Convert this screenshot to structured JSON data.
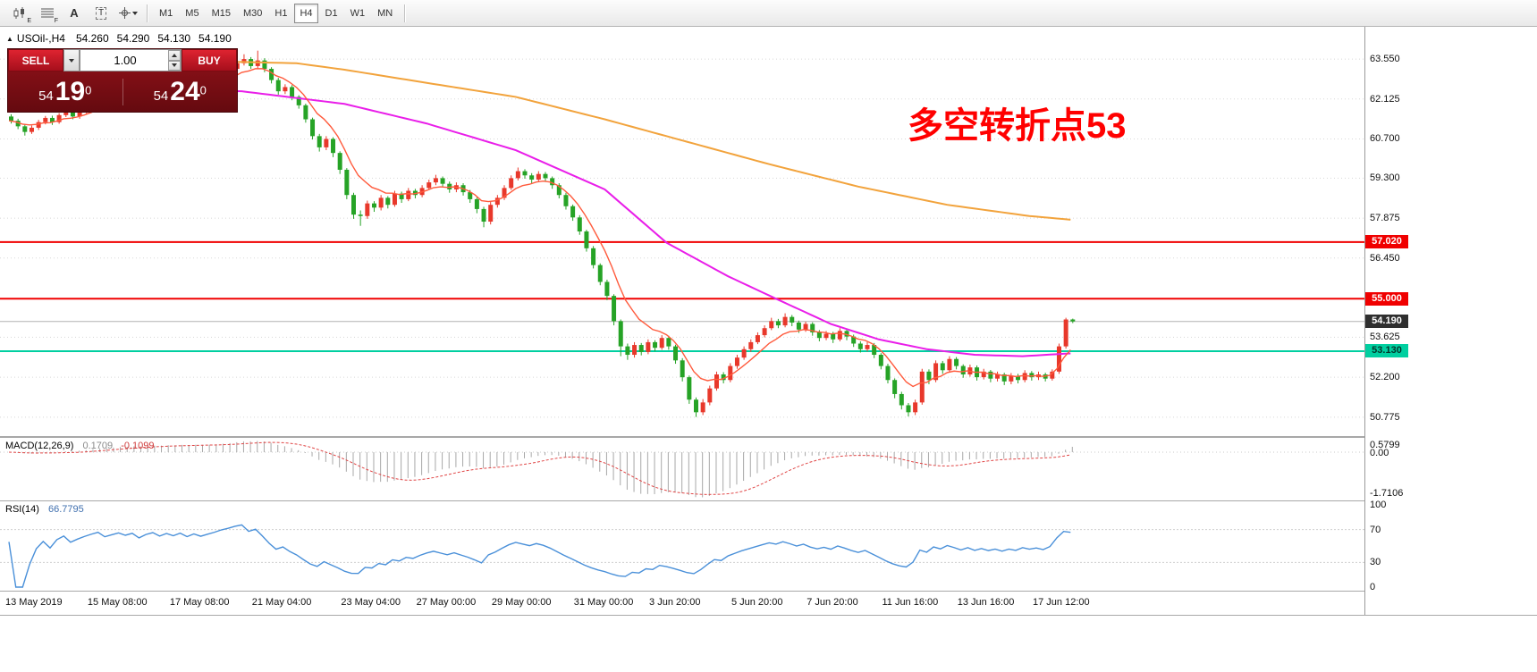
{
  "toolbar": {
    "icons": [
      {
        "name": "candlestick-chart-icon",
        "badge": "E"
      },
      {
        "name": "hatch-pattern-icon",
        "badge": "F"
      },
      {
        "name": "font-icon",
        "label": "A"
      },
      {
        "name": "text-tool-icon",
        "label": "T"
      },
      {
        "name": "crosshair-dropdown-icon",
        "badge": ""
      }
    ],
    "timeframes": [
      "M1",
      "M5",
      "M15",
      "M30",
      "H1",
      "H4",
      "D1",
      "W1",
      "MN"
    ],
    "active_timeframe": "H4"
  },
  "trade_panel": {
    "sell_label": "SELL",
    "buy_label": "BUY",
    "volume": "1.00",
    "sell_price": {
      "whole": "54",
      "pips": "19",
      "frac": "0"
    },
    "buy_price": {
      "whole": "54",
      "pips": "24",
      "frac": "0"
    }
  },
  "annotation": {
    "text": "多空转折点53",
    "color": "#ff0000"
  },
  "chart_data": {
    "type": "candlestick",
    "symbol": "USOil-,H4",
    "timeframe": "H4",
    "ohlc": {
      "open": "54.260",
      "high": "54.290",
      "low": "54.130",
      "close": "54.190"
    },
    "price_range": {
      "min": 50.1,
      "max": 64.7
    },
    "price_ticks": [
      "63.550",
      "62.125",
      "60.700",
      "59.300",
      "57.875",
      "56.450",
      "53.625",
      "52.200",
      "50.775"
    ],
    "badges": [
      {
        "label": "57.020",
        "price": 57.02,
        "bg": "#f00000",
        "fg": "#ffffff"
      },
      {
        "label": "55.000",
        "price": 55.0,
        "bg": "#f00000",
        "fg": "#ffffff"
      },
      {
        "label": "54.190",
        "price": 54.19,
        "bg": "#2f2f2f",
        "fg": "#ffffff"
      },
      {
        "label": "53.130",
        "price": 53.13,
        "bg": "#00cfa0",
        "fg": "#00352a"
      }
    ],
    "hlines": [
      {
        "price": 57.02,
        "color": "#f00000",
        "width": 2
      },
      {
        "price": 55.0,
        "color": "#f00000",
        "width": 2
      },
      {
        "price": 53.13,
        "color": "#00cfa0",
        "width": 2
      },
      {
        "price": 54.19,
        "color": "#b4b4b4",
        "width": 1
      }
    ],
    "time_labels": [
      {
        "text": "13 May 2019",
        "index": 0
      },
      {
        "text": "15 May 08:00",
        "index": 12
      },
      {
        "text": "17 May 08:00",
        "index": 24
      },
      {
        "text": "21 May 04:00",
        "index": 36
      },
      {
        "text": "23 May 04:00",
        "index": 49
      },
      {
        "text": "27 May 00:00",
        "index": 60
      },
      {
        "text": "29 May 00:00",
        "index": 71
      },
      {
        "text": "31 May 00:00",
        "index": 83
      },
      {
        "text": "3 Jun 20:00",
        "index": 94
      },
      {
        "text": "5 Jun 20:00",
        "index": 106
      },
      {
        "text": "7 Jun 20:00",
        "index": 117
      },
      {
        "text": "11 Jun 16:00",
        "index": 128
      },
      {
        "text": "13 Jun 16:00",
        "index": 139
      },
      {
        "text": "17 Jun 12:00",
        "index": 150
      }
    ],
    "overlays": {
      "ma_slow": [
        [
          0,
          63.1
        ],
        [
          20,
          63.3
        ],
        [
          33,
          63.45
        ],
        [
          42,
          63.4
        ],
        [
          49,
          63.17
        ],
        [
          61,
          62.7
        ],
        [
          74,
          62.2
        ],
        [
          87,
          61.4
        ],
        [
          99,
          60.6
        ],
        [
          111,
          59.8
        ],
        [
          124,
          59.0
        ],
        [
          137,
          58.35
        ],
        [
          149,
          57.95
        ],
        [
          155,
          57.82
        ]
      ],
      "ma_mid": [
        [
          0,
          62.4
        ],
        [
          20,
          62.45
        ],
        [
          34,
          62.4
        ],
        [
          49,
          61.95
        ],
        [
          61,
          61.25
        ],
        [
          74,
          60.3
        ],
        [
          87,
          58.9
        ],
        [
          96,
          57.0
        ],
        [
          105,
          55.8
        ],
        [
          112,
          55.0
        ],
        [
          120,
          54.1
        ],
        [
          127,
          53.55
        ],
        [
          134,
          53.2
        ],
        [
          141,
          53.0
        ],
        [
          148,
          52.95
        ],
        [
          155,
          53.05
        ]
      ],
      "ma_fast_period": 8
    },
    "indicators": {
      "macd": {
        "label": "MACD(12,26,9)",
        "params": [
          12,
          26,
          9
        ],
        "display_main": "0.1709",
        "display_signal": "-0.1099",
        "axis": {
          "max": "0.5799",
          "zero": "0.00",
          "min": "-1.7106"
        }
      },
      "rsi": {
        "label": "RSI(14)",
        "period": 14,
        "display": "66.7795",
        "axis": [
          "100",
          "70",
          "30",
          "0"
        ],
        "levels": [
          70,
          30
        ]
      }
    },
    "colors": {
      "up": "#e8382b",
      "down": "#26a326",
      "ma_slow": "#f2a33c",
      "ma_mid": "#e91ee9",
      "ma_fast": "#ff5a3c",
      "macd_hist": "#a8a8a8",
      "macd_signal": "#e04545",
      "rsi": "#4a90d9",
      "grid": "#d8d8d8"
    },
    "candles": [
      [
        61.5,
        61.58,
        61.25,
        61.35
      ],
      [
        61.35,
        61.42,
        61.05,
        61.15
      ],
      [
        61.15,
        61.22,
        60.82,
        60.95
      ],
      [
        60.95,
        61.18,
        60.88,
        61.1
      ],
      [
        61.1,
        61.38,
        61.02,
        61.3
      ],
      [
        61.3,
        61.52,
        61.22,
        61.45
      ],
      [
        61.45,
        61.53,
        61.2,
        61.3
      ],
      [
        61.3,
        61.62,
        61.24,
        61.55
      ],
      [
        61.55,
        61.78,
        61.48,
        61.7
      ],
      [
        61.7,
        61.76,
        61.4,
        61.5
      ],
      [
        61.5,
        61.73,
        61.42,
        61.65
      ],
      [
        61.65,
        61.88,
        61.57,
        61.8
      ],
      [
        61.8,
        62.03,
        61.72,
        61.95
      ],
      [
        61.95,
        62.18,
        61.88,
        62.1
      ],
      [
        62.1,
        62.16,
        61.8,
        61.9
      ],
      [
        61.9,
        62.13,
        61.82,
        62.05
      ],
      [
        62.05,
        62.28,
        61.97,
        62.2
      ],
      [
        62.2,
        62.27,
        62.0,
        62.1
      ],
      [
        62.1,
        62.33,
        62.02,
        62.25
      ],
      [
        62.25,
        62.31,
        61.95,
        62.05
      ],
      [
        62.05,
        62.38,
        61.98,
        62.3
      ],
      [
        62.3,
        62.53,
        62.22,
        62.45
      ],
      [
        62.45,
        62.51,
        62.2,
        62.3
      ],
      [
        62.3,
        62.58,
        62.22,
        62.5
      ],
      [
        62.5,
        62.56,
        62.3,
        62.4
      ],
      [
        62.4,
        62.68,
        62.32,
        62.6
      ],
      [
        62.6,
        62.66,
        62.35,
        62.45
      ],
      [
        62.45,
        62.73,
        62.37,
        62.65
      ],
      [
        62.65,
        62.71,
        62.45,
        62.55
      ],
      [
        62.55,
        62.78,
        62.47,
        62.7
      ],
      [
        62.7,
        62.93,
        62.62,
        62.85
      ],
      [
        62.85,
        63.13,
        62.77,
        63.05
      ],
      [
        63.05,
        63.28,
        62.97,
        63.2
      ],
      [
        63.2,
        63.48,
        63.12,
        63.4
      ],
      [
        63.4,
        63.72,
        63.32,
        63.55
      ],
      [
        63.55,
        63.62,
        63.2,
        63.3
      ],
      [
        63.3,
        63.85,
        63.22,
        63.5
      ],
      [
        63.5,
        63.58,
        63.08,
        63.2
      ],
      [
        63.2,
        63.26,
        62.68,
        62.8
      ],
      [
        62.8,
        62.88,
        62.28,
        62.4
      ],
      [
        62.4,
        62.65,
        62.3,
        62.55
      ],
      [
        62.55,
        62.62,
        62.08,
        62.2
      ],
      [
        62.2,
        62.26,
        61.78,
        61.9
      ],
      [
        61.9,
        61.96,
        61.28,
        61.4
      ],
      [
        61.4,
        61.46,
        60.68,
        60.8
      ],
      [
        60.8,
        60.88,
        60.25,
        60.4
      ],
      [
        60.4,
        60.8,
        60.3,
        60.7
      ],
      [
        60.7,
        60.76,
        60.05,
        60.2
      ],
      [
        60.2,
        60.26,
        59.45,
        59.6
      ],
      [
        59.6,
        59.66,
        58.55,
        58.7
      ],
      [
        58.7,
        58.78,
        57.85,
        58.0
      ],
      [
        58.0,
        58.15,
        57.6,
        57.95
      ],
      [
        57.95,
        58.5,
        57.85,
        58.4
      ],
      [
        58.4,
        58.48,
        58.1,
        58.25
      ],
      [
        58.25,
        58.7,
        58.15,
        58.6
      ],
      [
        58.6,
        58.66,
        58.22,
        58.35
      ],
      [
        58.35,
        58.85,
        58.28,
        58.75
      ],
      [
        58.75,
        58.82,
        58.42,
        58.55
      ],
      [
        58.55,
        58.95,
        58.48,
        58.85
      ],
      [
        58.85,
        58.92,
        58.58,
        58.7
      ],
      [
        58.7,
        59.05,
        58.62,
        58.95
      ],
      [
        58.95,
        59.25,
        58.88,
        59.15
      ],
      [
        59.15,
        59.42,
        59.05,
        59.3
      ],
      [
        59.3,
        59.36,
        58.98,
        59.1
      ],
      [
        59.1,
        59.18,
        58.78,
        58.9
      ],
      [
        58.9,
        59.15,
        58.8,
        59.05
      ],
      [
        59.05,
        59.12,
        58.68,
        58.8
      ],
      [
        58.8,
        58.88,
        58.42,
        58.55
      ],
      [
        58.55,
        58.62,
        58.05,
        58.2
      ],
      [
        58.2,
        58.28,
        57.55,
        57.75
      ],
      [
        57.75,
        58.45,
        57.65,
        58.35
      ],
      [
        58.35,
        58.7,
        58.25,
        58.6
      ],
      [
        58.6,
        59.05,
        58.52,
        58.95
      ],
      [
        58.95,
        59.4,
        58.88,
        59.3
      ],
      [
        59.3,
        59.68,
        59.22,
        59.55
      ],
      [
        59.55,
        59.62,
        59.28,
        59.4
      ],
      [
        59.4,
        59.48,
        59.12,
        59.25
      ],
      [
        59.25,
        59.55,
        59.18,
        59.45
      ],
      [
        59.45,
        59.52,
        59.18,
        59.3
      ],
      [
        59.3,
        59.36,
        58.92,
        59.05
      ],
      [
        59.05,
        59.12,
        58.58,
        58.7
      ],
      [
        58.7,
        58.78,
        58.18,
        58.3
      ],
      [
        58.3,
        58.36,
        57.78,
        57.9
      ],
      [
        57.9,
        57.98,
        57.28,
        57.4
      ],
      [
        57.4,
        57.46,
        56.68,
        56.8
      ],
      [
        56.8,
        56.88,
        56.08,
        56.2
      ],
      [
        56.2,
        56.26,
        55.48,
        55.6
      ],
      [
        55.6,
        55.68,
        54.95,
        55.1
      ],
      [
        55.1,
        55.16,
        54.05,
        54.2
      ],
      [
        54.2,
        54.26,
        52.95,
        53.3
      ],
      [
        53.3,
        53.4,
        52.82,
        53.0
      ],
      [
        53.0,
        53.45,
        52.9,
        53.35
      ],
      [
        53.35,
        53.42,
        52.98,
        53.1
      ],
      [
        53.1,
        53.55,
        53.02,
        53.45
      ],
      [
        53.45,
        53.52,
        53.12,
        53.25
      ],
      [
        53.25,
        53.7,
        53.18,
        53.6
      ],
      [
        53.6,
        53.68,
        53.18,
        53.3
      ],
      [
        53.3,
        53.36,
        52.68,
        52.8
      ],
      [
        52.8,
        52.88,
        52.05,
        52.2
      ],
      [
        52.2,
        52.26,
        51.25,
        51.4
      ],
      [
        51.4,
        51.48,
        50.78,
        50.95
      ],
      [
        50.95,
        51.42,
        50.85,
        51.3
      ],
      [
        51.3,
        51.9,
        51.2,
        51.8
      ],
      [
        51.8,
        52.4,
        51.72,
        52.3
      ],
      [
        52.3,
        52.38,
        51.98,
        52.1
      ],
      [
        52.1,
        52.7,
        52.02,
        52.6
      ],
      [
        52.6,
        53.0,
        52.5,
        52.9
      ],
      [
        52.9,
        53.3,
        52.82,
        53.2
      ],
      [
        53.2,
        53.55,
        53.1,
        53.45
      ],
      [
        53.45,
        53.8,
        53.38,
        53.7
      ],
      [
        53.7,
        54.05,
        53.62,
        53.95
      ],
      [
        53.95,
        54.32,
        53.88,
        54.2
      ],
      [
        54.2,
        54.28,
        53.95,
        54.05
      ],
      [
        54.05,
        54.48,
        53.98,
        54.35
      ],
      [
        54.35,
        54.42,
        54.02,
        54.15
      ],
      [
        54.15,
        54.22,
        53.78,
        53.9
      ],
      [
        53.9,
        54.18,
        53.82,
        54.1
      ],
      [
        54.1,
        54.16,
        53.68,
        53.8
      ],
      [
        53.8,
        53.88,
        53.48,
        53.6
      ],
      [
        53.6,
        53.85,
        53.52,
        53.75
      ],
      [
        53.75,
        53.82,
        53.42,
        53.55
      ],
      [
        53.55,
        53.95,
        53.48,
        53.85
      ],
      [
        53.85,
        53.92,
        53.52,
        53.65
      ],
      [
        53.65,
        53.72,
        53.28,
        53.4
      ],
      [
        53.4,
        53.48,
        53.08,
        53.2
      ],
      [
        53.2,
        53.45,
        53.12,
        53.35
      ],
      [
        53.35,
        53.42,
        52.88,
        53.0
      ],
      [
        53.0,
        53.06,
        52.48,
        52.6
      ],
      [
        52.6,
        52.68,
        51.98,
        52.1
      ],
      [
        52.1,
        52.16,
        51.45,
        51.6
      ],
      [
        51.6,
        51.68,
        51.05,
        51.2
      ],
      [
        51.2,
        51.28,
        50.8,
        50.95
      ],
      [
        50.95,
        51.4,
        50.85,
        51.3
      ],
      [
        51.3,
        52.5,
        51.22,
        52.4
      ],
      [
        52.4,
        52.48,
        51.95,
        52.1
      ],
      [
        52.1,
        52.8,
        52.02,
        52.7
      ],
      [
        52.7,
        52.78,
        52.32,
        52.45
      ],
      [
        52.45,
        52.95,
        52.38,
        52.85
      ],
      [
        52.85,
        52.92,
        52.48,
        52.6
      ],
      [
        52.6,
        52.66,
        52.18,
        52.3
      ],
      [
        52.3,
        52.65,
        52.22,
        52.55
      ],
      [
        52.55,
        52.62,
        52.08,
        52.2
      ],
      [
        52.2,
        52.5,
        52.12,
        52.4
      ],
      [
        52.4,
        52.46,
        52.02,
        52.15
      ],
      [
        52.15,
        52.4,
        52.05,
        52.3
      ],
      [
        52.3,
        52.36,
        51.92,
        52.05
      ],
      [
        52.05,
        52.35,
        51.95,
        52.25
      ],
      [
        52.25,
        52.32,
        51.98,
        52.1
      ],
      [
        52.1,
        52.45,
        52.02,
        52.35
      ],
      [
        52.35,
        52.42,
        52.08,
        52.2
      ],
      [
        52.2,
        52.4,
        52.1,
        52.3
      ],
      [
        52.3,
        52.36,
        52.05,
        52.15
      ],
      [
        52.15,
        52.48,
        52.08,
        52.4
      ],
      [
        52.4,
        53.4,
        52.32,
        53.3
      ],
      [
        53.3,
        54.32,
        53.22,
        54.26
      ],
      [
        54.26,
        54.29,
        54.13,
        54.19
      ]
    ]
  }
}
